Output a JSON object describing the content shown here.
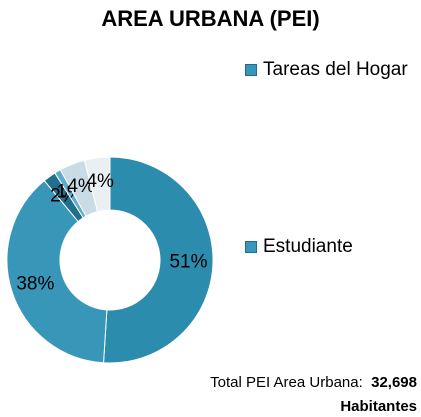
{
  "chart_data": {
    "type": "donut",
    "title": "AREA URBANA (PEI)",
    "categories": [
      "Tareas del Hogar",
      "Estudiante",
      null,
      null,
      null,
      null
    ],
    "values": [
      51,
      38,
      2,
      1,
      4,
      4
    ],
    "value_labels": [
      "51%",
      "38%",
      "2%",
      "1%",
      "4%",
      "4%"
    ],
    "colors": [
      "#2b8cae",
      "#3896b9",
      "#1f6f8d",
      "#5eaccb",
      "#c9dce6",
      "#e9eff3"
    ],
    "footer_label": "Total PEI Area Urbana:",
    "footer_value": "32,698",
    "footer_unit": "Habitantes"
  }
}
